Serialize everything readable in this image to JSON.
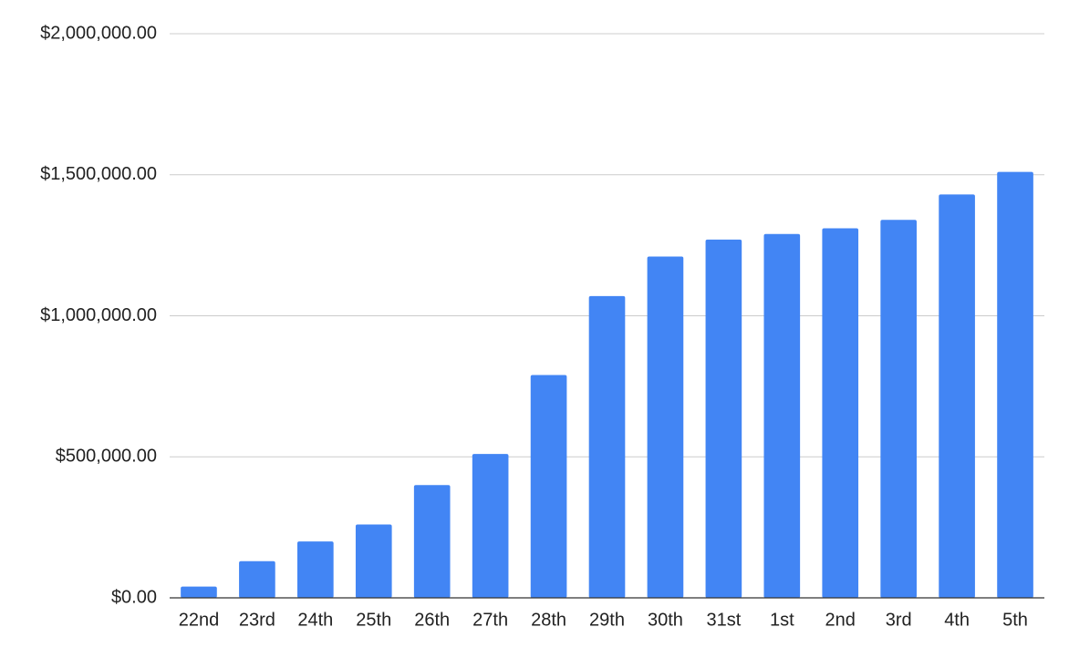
{
  "chart_data": {
    "type": "bar",
    "categories": [
      "22nd",
      "23rd",
      "24th",
      "25th",
      "26th",
      "27th",
      "28th",
      "29th",
      "30th",
      "31st",
      "1st",
      "2nd",
      "3rd",
      "4th",
      "5th"
    ],
    "values": [
      40000,
      130000,
      200000,
      260000,
      400000,
      510000,
      790000,
      1070000,
      1210000,
      1270000,
      1290000,
      1310000,
      1340000,
      1430000,
      1510000
    ],
    "color": "#4285f4",
    "ylim": [
      0,
      2000000
    ],
    "yticks": [
      {
        "value": 0,
        "label": "$0.00"
      },
      {
        "value": 500000,
        "label": "$500,000.00"
      },
      {
        "value": 1000000,
        "label": "$1,000,000.00"
      },
      {
        "value": 1500000,
        "label": "$1,500,000.00"
      },
      {
        "value": 2000000,
        "label": "$2,000,000.00"
      }
    ],
    "grid": true
  }
}
